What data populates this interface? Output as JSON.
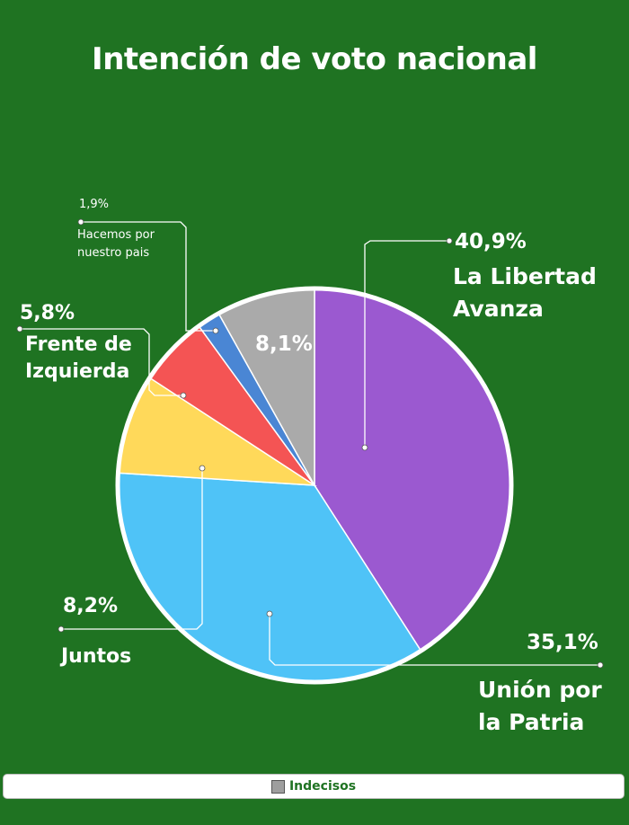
{
  "chart_data": {
    "type": "pie",
    "title": "Intención de voto nacional",
    "slices": [
      {
        "name": "La Libertad Avanza",
        "name_lines": [
          "La Libertad",
          "Avanza"
        ],
        "value": 40.9,
        "label": "40,9%",
        "color": "#9b59d0"
      },
      {
        "name": "Unión por la Patria",
        "name_lines": [
          "Unión por",
          "la Patria"
        ],
        "value": 35.1,
        "label": "35,1%",
        "color": "#4fc3f7"
      },
      {
        "name": "Juntos",
        "name_lines": [
          "Juntos"
        ],
        "value": 8.2,
        "label": "8,2%",
        "color": "#ffd95a"
      },
      {
        "name": "Frente de Izquierda",
        "name_lines": [
          "Frente de",
          "Izquierda"
        ],
        "value": 5.8,
        "label": "5,8%",
        "color": "#f45454"
      },
      {
        "name": "Hacemos por nuestro pais",
        "name_lines": [
          "Hacemos por",
          "nuestro pais"
        ],
        "value": 1.9,
        "label": "1,9%",
        "color": "#4a86d4"
      },
      {
        "name": "Indecisos",
        "name_lines": [],
        "value": 8.1,
        "label": "8,1%",
        "color": "#aaaaaa"
      }
    ],
    "legend": {
      "entries": [
        "Indecisos"
      ],
      "position": "bottom"
    }
  }
}
